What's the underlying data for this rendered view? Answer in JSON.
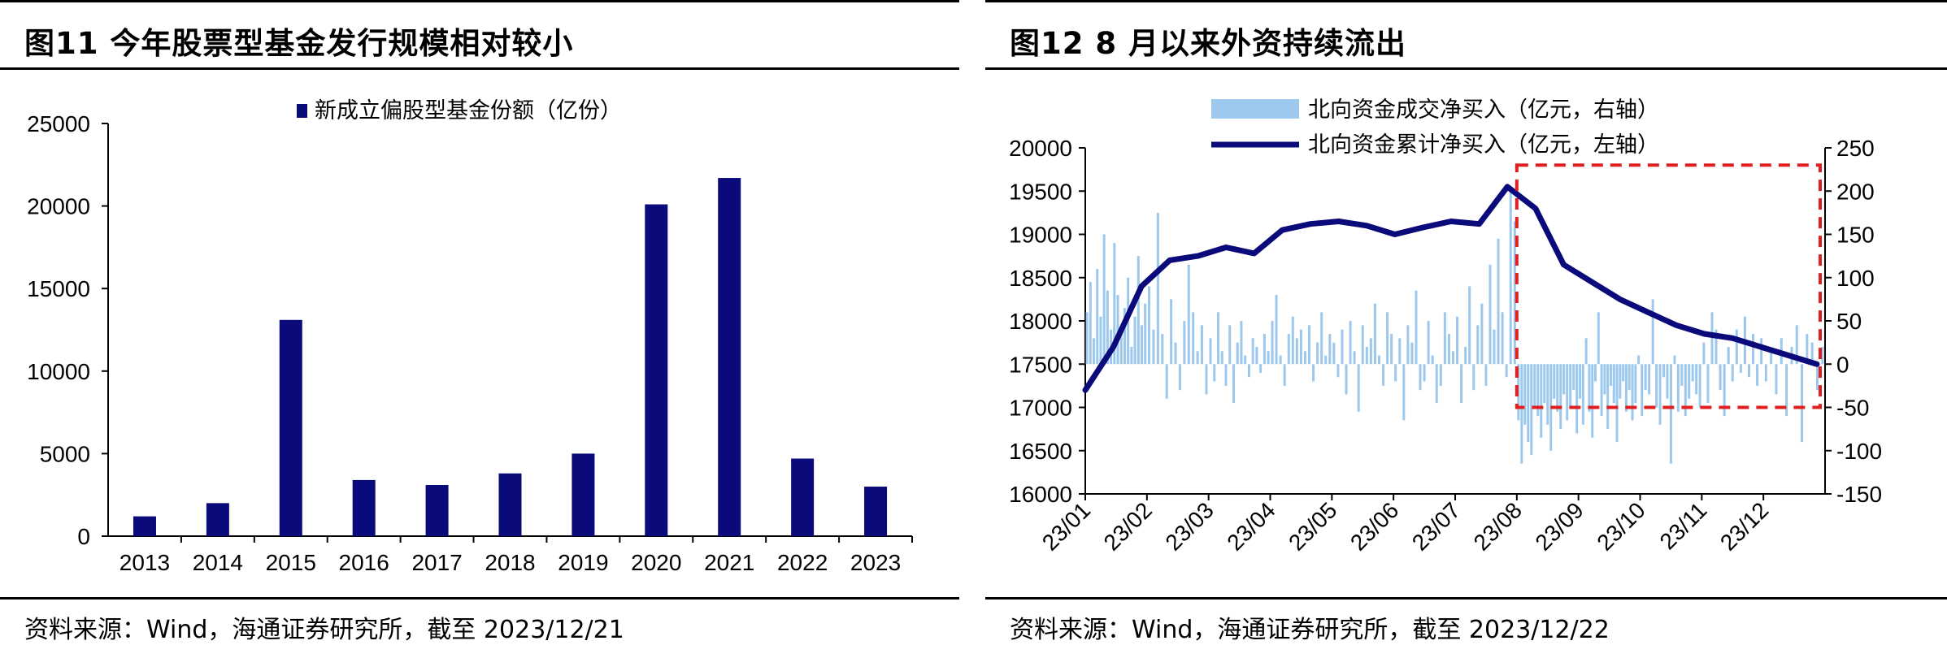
{
  "chart_data": [
    {
      "type": "bar",
      "title": "图11 今年股票型基金发行规模相对较小",
      "source": "资料来源：Wind，海通证券研究所，截至 2023/12/21",
      "legend_position": "top-center",
      "categories": [
        "2013",
        "2014",
        "2015",
        "2016",
        "2017",
        "2018",
        "2019",
        "2020",
        "2021",
        "2022",
        "2023"
      ],
      "series": [
        {
          "name": "新成立偏股型基金份额（亿份）",
          "color": "#0a0a7a",
          "values": [
            1200,
            2000,
            13100,
            3400,
            3100,
            3800,
            5000,
            20100,
            21700,
            4700,
            3000
          ]
        }
      ],
      "ylim": [
        0,
        25000
      ],
      "yticks": [
        "0",
        "5000",
        "10000",
        "15000",
        "20000",
        "25000"
      ],
      "grid": false
    },
    {
      "type": "bar+line",
      "title": "图12 8 月以来外资持续流出",
      "source": "资料来源：Wind，海通证券研究所，截至 2023/12/22",
      "legend_position": "top-center",
      "x_ticks": [
        "23/01",
        "23/02",
        "23/03",
        "23/04",
        "23/05",
        "23/06",
        "23/07",
        "23/08",
        "23/09",
        "23/10",
        "23/11",
        "23/12"
      ],
      "series": [
        {
          "name": "北向资金成交净买入（亿元，右轴）",
          "type": "bar",
          "axis": "right",
          "color": "#9dc8ee",
          "month_points": [
            "23/01",
            "23/02",
            "23/03",
            "23/04",
            "23/05",
            "23/06",
            "23/07",
            "23/08",
            "23/09",
            "23/10",
            "23/11",
            "23/12"
          ],
          "values": [
            [
              60,
              95,
              30,
              110,
              55,
              150,
              85,
              40,
              140,
              80,
              35,
              65,
              100,
              20,
              55,
              125,
              45,
              70
            ],
            [
              90,
              40,
              175,
              35,
              -40,
              75,
              25,
              -30,
              50,
              115,
              60,
              15,
              45,
              -35
            ],
            [
              30,
              -20,
              60,
              15,
              -25,
              45,
              -45,
              25,
              50,
              10,
              -15,
              30,
              20,
              -10,
              35,
              15
            ],
            [
              50,
              80,
              10,
              -25,
              35,
              55,
              30,
              40,
              15,
              45,
              -20,
              25,
              60,
              10,
              35
            ],
            [
              25,
              -15,
              40,
              -35,
              50,
              15,
              -55,
              45,
              20,
              30,
              70,
              10,
              -25,
              60,
              35
            ],
            [
              -20,
              30,
              -65,
              45,
              25,
              85,
              -30,
              -20,
              50,
              10,
              -45,
              -25,
              60,
              35,
              15
            ],
            [
              55,
              -45,
              20,
              90,
              -30,
              45,
              70,
              -25,
              115,
              40,
              145,
              60,
              -15,
              205,
              165
            ],
            [
              -65,
              -115,
              -70,
              -90,
              -105,
              -50,
              -60,
              -85,
              -45,
              -70,
              -100,
              -40,
              -55,
              -75,
              -35,
              -65,
              -50,
              -30,
              -80
            ],
            [
              -40,
              -70,
              30,
              -55,
              -85,
              -20,
              60,
              -60,
              -35,
              -75,
              -25,
              -45,
              -90,
              -40,
              -20,
              -55,
              -30,
              -65,
              -45,
              10
            ],
            [
              -60,
              -30,
              -35,
              75,
              -50,
              -70,
              -15,
              -40,
              -115,
              10,
              -55,
              -25,
              -60,
              -40,
              -20,
              -35,
              -50
            ],
            [
              25,
              -45,
              60,
              40,
              -30,
              -60,
              20,
              -20,
              40,
              -10,
              55,
              -15,
              35,
              -25,
              30
            ],
            [
              -20,
              15,
              -35,
              30,
              -60,
              20,
              45,
              -90,
              35,
              25,
              -30,
              20
            ]
          ]
        },
        {
          "name": "北向资金累计净买入（亿元，左轴）",
          "type": "line",
          "axis": "left",
          "color": "#0a0a7a",
          "x": [
            "23/01",
            "23/01+",
            "23/01++",
            "23/02",
            "23/02+",
            "23/03",
            "23/03+",
            "23/04",
            "23/04+",
            "23/05",
            "23/05+",
            "23/06",
            "23/06+",
            "23/07",
            "23/07+",
            "23/08",
            "23/08+",
            "23/08++",
            "23/09",
            "23/09+",
            "23/10",
            "23/10+",
            "23/11",
            "23/11+",
            "23/12",
            "23/12+",
            "23/12++"
          ],
          "values": [
            17200,
            17700,
            18400,
            18700,
            18750,
            18850,
            18780,
            19050,
            19120,
            19150,
            19100,
            19000,
            19080,
            19150,
            19120,
            19550,
            19300,
            18650,
            18450,
            18250,
            18100,
            17950,
            17850,
            17800,
            17700,
            17600,
            17500
          ]
        }
      ],
      "ylim_left": [
        16000,
        20000
      ],
      "ylim_right": [
        -150,
        250
      ],
      "yticks_left": [
        "16000",
        "16500",
        "17000",
        "17500",
        "18000",
        "18500",
        "19000",
        "19500",
        "20000"
      ],
      "yticks_right": [
        "-150",
        "-100",
        "-50",
        "0",
        "50",
        "100",
        "150",
        "200",
        "250"
      ],
      "highlight_box": {
        "from": "23/08",
        "to": "23/12+",
        "y_right": [
          -50,
          230
        ],
        "color": "#e02020"
      },
      "grid": false
    }
  ]
}
